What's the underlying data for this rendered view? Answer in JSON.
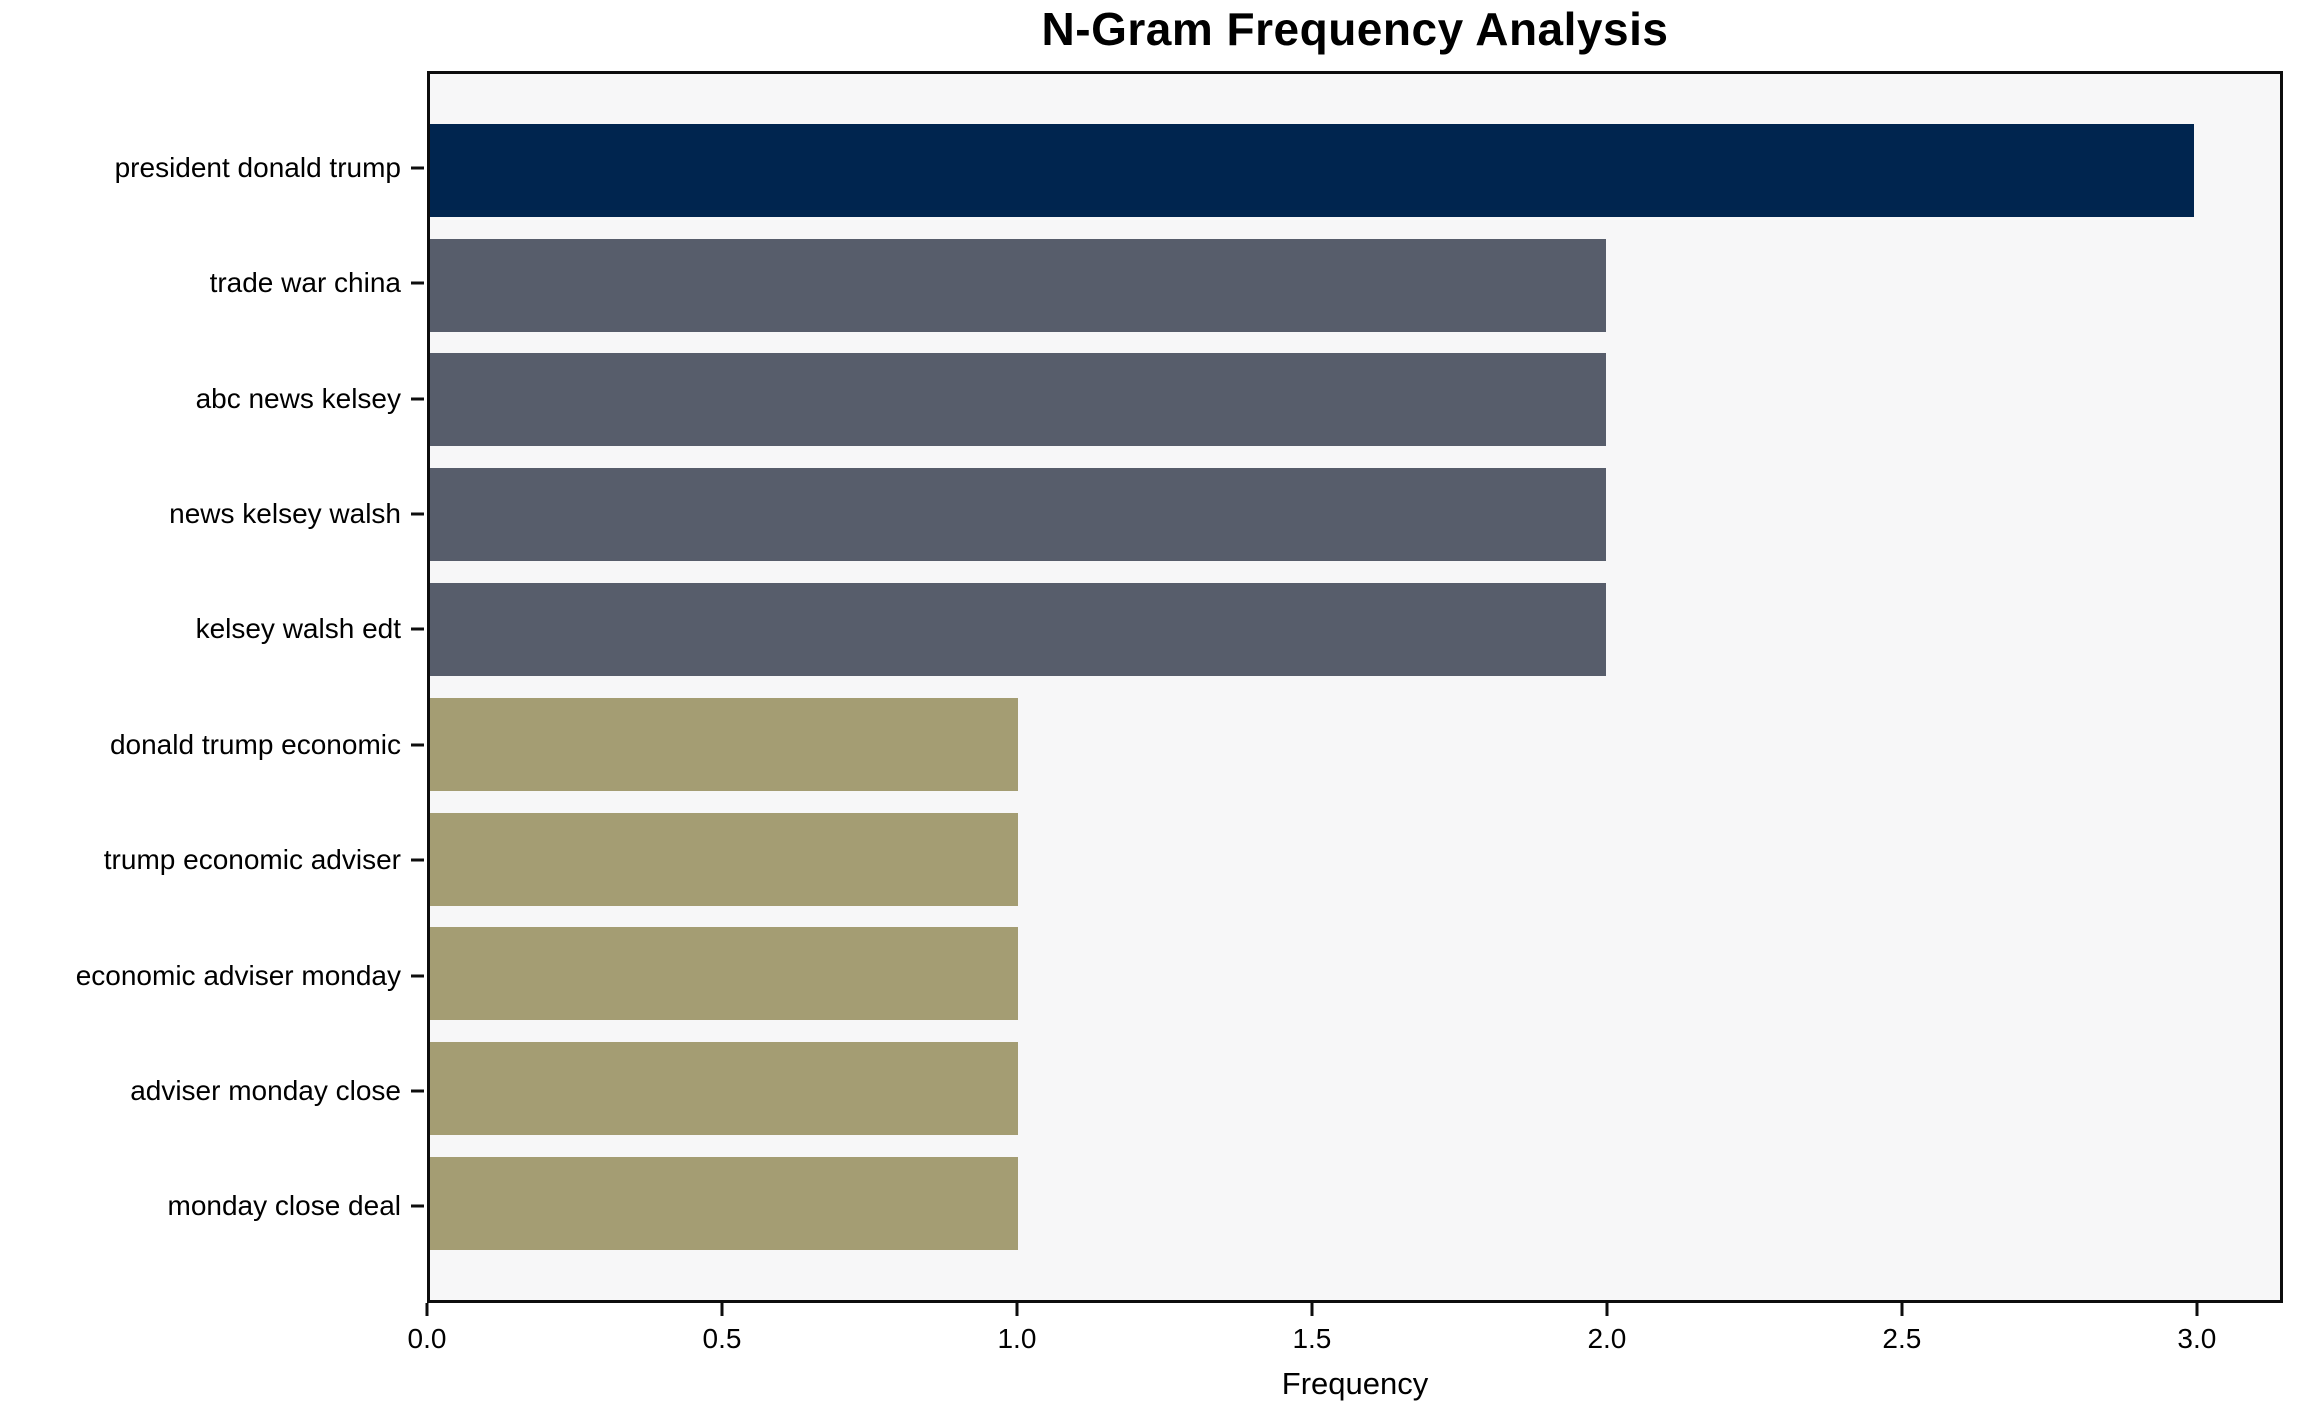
{
  "chart_data": {
    "type": "bar",
    "orientation": "horizontal",
    "title": "N-Gram Frequency Analysis",
    "xlabel": "Frequency",
    "ylabel": "",
    "categories": [
      "president donald trump",
      "trade war china",
      "abc news kelsey",
      "news kelsey walsh",
      "kelsey walsh edt",
      "donald trump economic",
      "trump economic adviser",
      "economic adviser monday",
      "adviser monday close",
      "monday close deal"
    ],
    "values": [
      3,
      2,
      2,
      2,
      2,
      1,
      1,
      1,
      1,
      1
    ],
    "bar_colors": [
      "#00254f",
      "#575d6b",
      "#575d6b",
      "#575d6b",
      "#575d6b",
      "#a49d73",
      "#a49d73",
      "#a49d73",
      "#a49d73",
      "#a49d73"
    ],
    "xlim": [
      0,
      3.146
    ],
    "xticks": [
      0,
      0.5,
      1,
      1.5,
      2,
      2.5,
      3
    ],
    "xtick_labels": [
      "0.0",
      "0.5",
      "1.0",
      "1.5",
      "2.0",
      "2.5",
      "3.0"
    ],
    "grid": false,
    "legend": null,
    "colors": {
      "plot_background": "#f7f7f8",
      "figure_background": "#ffffff",
      "spine": "#0d0d0d",
      "text": "#000000"
    }
  }
}
